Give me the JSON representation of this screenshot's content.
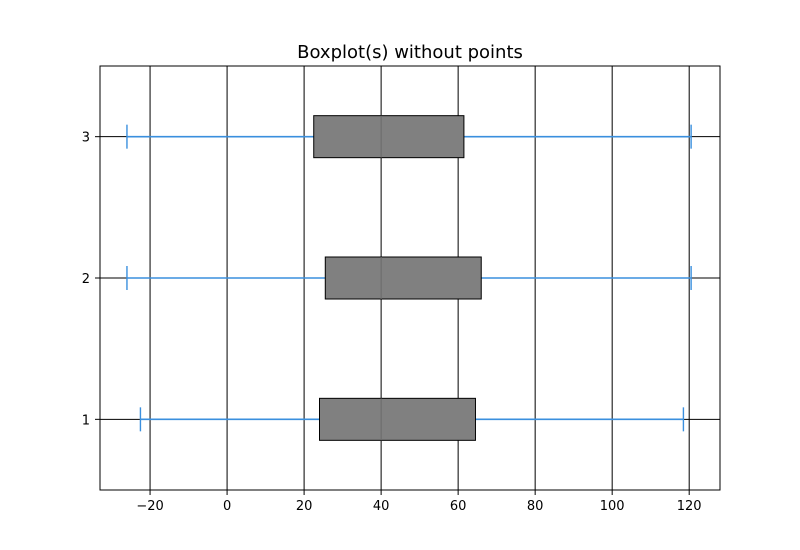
{
  "chart_data": {
    "type": "boxplot",
    "orientation": "horizontal",
    "title": "Boxplot(s) without points",
    "xlabel": "",
    "ylabel": "",
    "xlim": [
      -33,
      128
    ],
    "ylim": [
      0.5,
      3.5
    ],
    "xticks": [
      -20,
      0,
      20,
      40,
      60,
      80,
      100,
      120
    ],
    "xtick_labels": [
      "−20",
      "0",
      "20",
      "40",
      "60",
      "80",
      "100",
      "120"
    ],
    "yticks": [
      1,
      2,
      3
    ],
    "ytick_labels": [
      "1",
      "2",
      "3"
    ],
    "grid": true,
    "box_color": "#808080",
    "whisker_color": "#3a8fde",
    "boxes": [
      {
        "position": 1,
        "whisker_low": -22.5,
        "q1": 24,
        "median": 40,
        "q3": 64.5,
        "whisker_high": 118.5
      },
      {
        "position": 2,
        "whisker_low": -26,
        "q1": 25.5,
        "median": 40,
        "q3": 66,
        "whisker_high": 120.5
      },
      {
        "position": 3,
        "whisker_low": -26,
        "q1": 22.5,
        "median": 40,
        "q3": 61.5,
        "whisker_high": 120.5
      }
    ]
  }
}
